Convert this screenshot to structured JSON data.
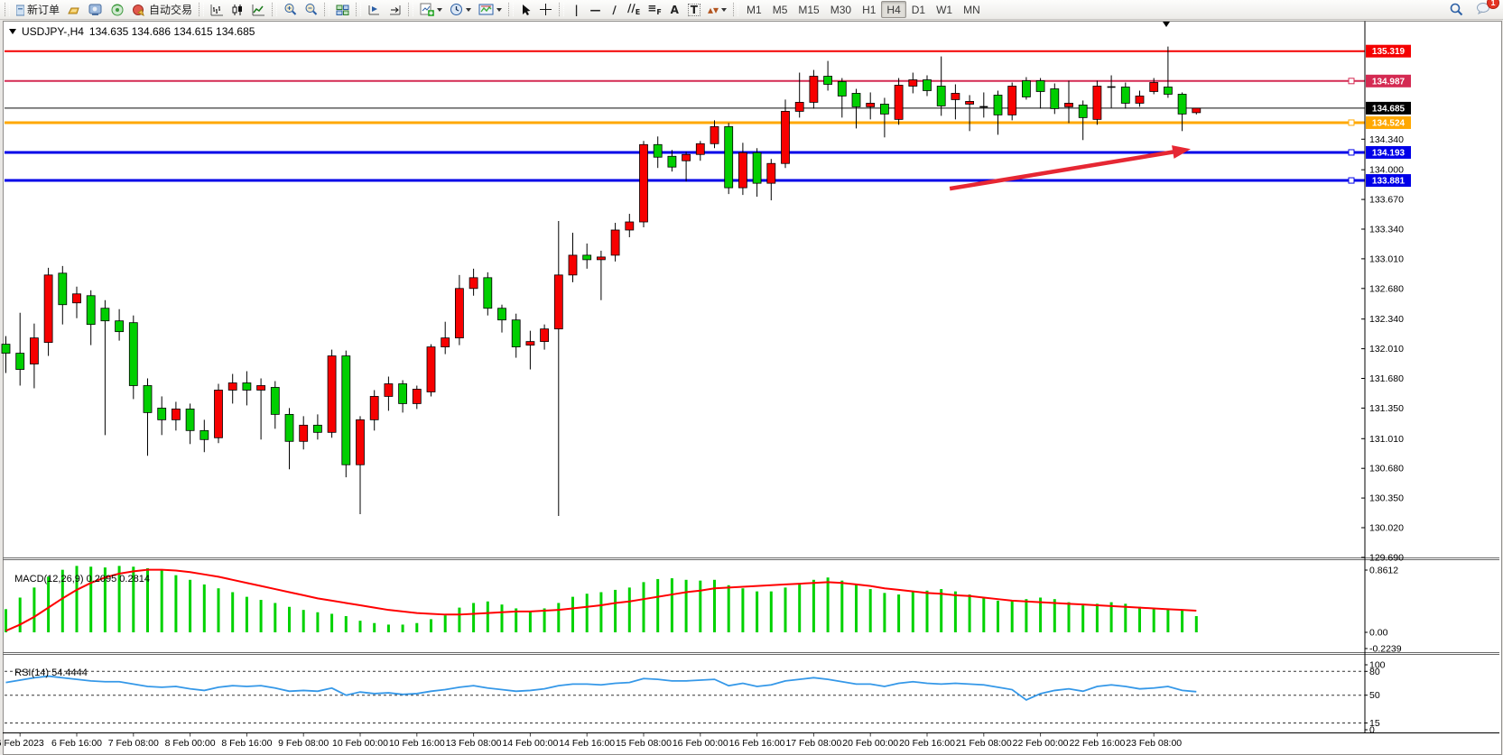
{
  "toolbar": {
    "new_order": "新订单",
    "auto_trading": "自动交易",
    "timeframes": [
      "M1",
      "M5",
      "M15",
      "M30",
      "H1",
      "H4",
      "D1",
      "W1",
      "MN"
    ],
    "active_timeframe": "H4",
    "notification_count": "1",
    "tool_glyphs": {
      "crosshair": "+",
      "vline": "|",
      "hline": "—",
      "trendline": "∕",
      "channel": "∕∕",
      "channel_letter": "E",
      "fib": "≡",
      "fib_letter": "F",
      "text": "A",
      "label": "T",
      "arrows": "▴▾"
    }
  },
  "chart_window": {
    "symbol_period": "USDJPY-,H4",
    "ohlc": "134.635 134.686 134.615 134.685"
  },
  "chart_data": {
    "type": "candlestick",
    "symbol": "USDJPY-",
    "period": "H4",
    "current_bar": {
      "open": 134.635,
      "high": 134.686,
      "low": 134.615,
      "close": 134.685
    },
    "up_color": "#f70000",
    "down_color": "#00cf00",
    "wick_color": "#000000",
    "price_lines": [
      {
        "price": 135.319,
        "label": "135.319",
        "color": "#f40000",
        "width": 2,
        "handle": false
      },
      {
        "price": 134.987,
        "label": "134.987",
        "color": "#d42a52",
        "width": 2,
        "handle": true
      },
      {
        "price": 134.685,
        "label": "134.685",
        "color": "#0a0a0a",
        "width": 1,
        "handle": false
      },
      {
        "price": 134.524,
        "label": "134.524",
        "color": "#ffa800",
        "width": 3,
        "handle": true
      },
      {
        "price": 134.193,
        "label": "134.193",
        "color": "#0000e8",
        "width": 3,
        "handle": true
      },
      {
        "price": 133.881,
        "label": "133.881",
        "color": "#0000e8",
        "width": 3,
        "handle": true
      }
    ],
    "price_axis": {
      "ticks": [
        "134.340",
        "134.000",
        "133.670",
        "133.340",
        "133.010",
        "132.680",
        "132.340",
        "132.010",
        "131.680",
        "131.350",
        "131.010",
        "130.680",
        "130.350",
        "130.020",
        "129.690"
      ]
    },
    "time_labels": [
      {
        "t": "6 Feb 2023",
        "bar": 1
      },
      {
        "t": "6 Feb 16:00",
        "bar": 5
      },
      {
        "t": "7 Feb 08:00",
        "bar": 9
      },
      {
        "t": "8 Feb 00:00",
        "bar": 13
      },
      {
        "t": "8 Feb 16:00",
        "bar": 17
      },
      {
        "t": "9 Feb 08:00",
        "bar": 21
      },
      {
        "t": "10 Feb 00:00",
        "bar": 25
      },
      {
        "t": "10 Feb 16:00",
        "bar": 29
      },
      {
        "t": "13 Feb 08:00",
        "bar": 33
      },
      {
        "t": "14 Feb 00:00",
        "bar": 37
      },
      {
        "t": "14 Feb 16:00",
        "bar": 41
      },
      {
        "t": "15 Feb 08:00",
        "bar": 45
      },
      {
        "t": "16 Feb 00:00",
        "bar": 49
      },
      {
        "t": "16 Feb 16:00",
        "bar": 53
      },
      {
        "t": "17 Feb 08:00",
        "bar": 57
      },
      {
        "t": "20 Feb 00:00",
        "bar": 61
      },
      {
        "t": "20 Feb 16:00",
        "bar": 65
      },
      {
        "t": "21 Feb 08:00",
        "bar": 69
      },
      {
        "t": "22 Feb 00:00",
        "bar": 73
      },
      {
        "t": "22 Feb 16:00",
        "bar": 77
      },
      {
        "t": "23 Feb 08:00",
        "bar": 81
      }
    ],
    "candles": [
      [
        132.06,
        132.15,
        131.74,
        131.96
      ],
      [
        131.96,
        132.41,
        131.6,
        131.78
      ],
      [
        131.84,
        132.29,
        131.57,
        132.13
      ],
      [
        132.08,
        132.91,
        131.93,
        132.83
      ],
      [
        132.85,
        132.93,
        132.28,
        132.5
      ],
      [
        132.52,
        132.7,
        132.35,
        132.62
      ],
      [
        132.6,
        132.66,
        132.05,
        132.28
      ],
      [
        132.46,
        132.55,
        131.05,
        132.32
      ],
      [
        132.32,
        132.45,
        132.1,
        132.2
      ],
      [
        132.3,
        132.38,
        131.45,
        131.6
      ],
      [
        131.6,
        131.68,
        130.82,
        131.3
      ],
      [
        131.35,
        131.48,
        131.05,
        131.22
      ],
      [
        131.22,
        131.42,
        131.1,
        131.34
      ],
      [
        131.34,
        131.4,
        130.95,
        131.1
      ],
      [
        131.1,
        131.22,
        130.86,
        131.0
      ],
      [
        131.02,
        131.62,
        130.96,
        131.55
      ],
      [
        131.55,
        131.73,
        131.4,
        131.63
      ],
      [
        131.63,
        131.76,
        131.38,
        131.55
      ],
      [
        131.55,
        131.68,
        131.0,
        131.6
      ],
      [
        131.58,
        131.65,
        131.12,
        131.28
      ],
      [
        131.28,
        131.35,
        130.67,
        130.98
      ],
      [
        130.98,
        131.26,
        130.89,
        131.16
      ],
      [
        131.16,
        131.28,
        131.0,
        131.08
      ],
      [
        131.08,
        132.0,
        131.02,
        131.93
      ],
      [
        131.93,
        131.99,
        130.58,
        130.72
      ],
      [
        130.72,
        131.26,
        130.17,
        131.22
      ],
      [
        131.22,
        131.55,
        131.1,
        131.48
      ],
      [
        131.48,
        131.7,
        131.32,
        131.62
      ],
      [
        131.62,
        131.66,
        131.3,
        131.4
      ],
      [
        131.4,
        131.6,
        131.34,
        131.56
      ],
      [
        131.53,
        132.06,
        131.48,
        132.03
      ],
      [
        132.03,
        132.31,
        131.95,
        132.13
      ],
      [
        132.13,
        132.83,
        132.05,
        132.68
      ],
      [
        132.68,
        132.9,
        132.6,
        132.8
      ],
      [
        132.8,
        132.86,
        132.38,
        132.46
      ],
      [
        132.46,
        132.5,
        132.19,
        132.33
      ],
      [
        132.33,
        132.4,
        131.91,
        132.03
      ],
      [
        132.05,
        132.21,
        131.78,
        132.09
      ],
      [
        132.09,
        132.28,
        132.0,
        132.23
      ],
      [
        132.23,
        133.43,
        130.15,
        132.83
      ],
      [
        132.83,
        133.3,
        132.75,
        133.05
      ],
      [
        133.05,
        133.18,
        132.9,
        133.0
      ],
      [
        133.0,
        133.1,
        132.55,
        133.03
      ],
      [
        133.05,
        133.41,
        132.98,
        133.33
      ],
      [
        133.33,
        133.51,
        133.25,
        133.42
      ],
      [
        133.42,
        134.32,
        133.36,
        134.28
      ],
      [
        134.28,
        134.37,
        134.02,
        134.14
      ],
      [
        134.15,
        134.22,
        133.98,
        134.03
      ],
      [
        134.1,
        134.2,
        133.87,
        134.17
      ],
      [
        134.17,
        134.32,
        134.1,
        134.29
      ],
      [
        134.29,
        134.55,
        134.24,
        134.48
      ],
      [
        134.48,
        134.52,
        133.73,
        133.8
      ],
      [
        133.8,
        134.3,
        133.72,
        134.19
      ],
      [
        134.19,
        134.24,
        133.7,
        133.85
      ],
      [
        133.85,
        134.12,
        133.66,
        134.07
      ],
      [
        134.07,
        134.78,
        134.02,
        134.65
      ],
      [
        134.65,
        135.08,
        134.58,
        134.75
      ],
      [
        134.75,
        135.11,
        134.68,
        135.04
      ],
      [
        135.04,
        135.21,
        134.88,
        134.95
      ],
      [
        134.98,
        135.02,
        134.58,
        134.82
      ],
      [
        134.85,
        134.9,
        134.46,
        134.7
      ],
      [
        134.7,
        134.86,
        134.56,
        134.74
      ],
      [
        134.73,
        134.8,
        134.36,
        134.62
      ],
      [
        134.56,
        135.02,
        134.5,
        134.94
      ],
      [
        134.93,
        135.08,
        134.85,
        135.0
      ],
      [
        135.0,
        135.05,
        134.82,
        134.88
      ],
      [
        134.93,
        135.26,
        134.6,
        134.71
      ],
      [
        134.78,
        134.95,
        134.56,
        134.85
      ],
      [
        134.73,
        134.83,
        134.43,
        134.76
      ],
      [
        134.7,
        134.86,
        134.58,
        134.7
      ],
      [
        134.83,
        134.88,
        134.39,
        134.61
      ],
      [
        134.61,
        134.97,
        134.55,
        134.93
      ],
      [
        134.99,
        135.03,
        134.78,
        134.81
      ],
      [
        134.99,
        135.02,
        134.68,
        134.87
      ],
      [
        134.9,
        134.96,
        134.62,
        134.68
      ],
      [
        134.7,
        134.99,
        134.52,
        134.74
      ],
      [
        134.72,
        134.77,
        134.33,
        134.58
      ],
      [
        134.56,
        134.99,
        134.5,
        134.93
      ],
      [
        134.92,
        135.05,
        134.69,
        134.92
      ],
      [
        134.92,
        134.97,
        134.68,
        134.74
      ],
      [
        134.74,
        134.88,
        134.7,
        134.82
      ],
      [
        134.87,
        135.02,
        134.84,
        134.97
      ],
      [
        134.92,
        135.37,
        134.8,
        134.84
      ],
      [
        134.84,
        134.86,
        134.43,
        134.62
      ],
      [
        134.635,
        134.686,
        134.615,
        134.685
      ]
    ],
    "trend_arrow": {
      "from_bar": 66.6,
      "from_price": 133.79,
      "to_bar": 83.6,
      "to_price": 134.23,
      "color": "#e62733"
    },
    "macd": {
      "label": "MACD(12,26,9)",
      "values_text": "0.2095 0.2814",
      "hist_color": "#00d200",
      "signal_color": "#ff0000",
      "scale_labels": [
        {
          "t": "0.8612",
          "v": 0.8612
        },
        {
          "t": "0.00",
          "v": 0
        },
        {
          "t": "-0.2239",
          "v": -0.2239
        }
      ],
      "histogram": [
        0.3,
        0.45,
        0.58,
        0.72,
        0.81,
        0.86,
        0.85,
        0.84,
        0.86,
        0.85,
        0.83,
        0.8,
        0.74,
        0.68,
        0.62,
        0.57,
        0.52,
        0.46,
        0.42,
        0.38,
        0.33,
        0.29,
        0.26,
        0.24,
        0.21,
        0.15,
        0.12,
        0.1,
        0.1,
        0.12,
        0.17,
        0.22,
        0.32,
        0.38,
        0.4,
        0.36,
        0.31,
        0.28,
        0.31,
        0.38,
        0.46,
        0.5,
        0.52,
        0.55,
        0.58,
        0.65,
        0.69,
        0.7,
        0.68,
        0.67,
        0.68,
        0.61,
        0.57,
        0.53,
        0.53,
        0.58,
        0.63,
        0.68,
        0.71,
        0.67,
        0.62,
        0.56,
        0.51,
        0.49,
        0.52,
        0.54,
        0.56,
        0.53,
        0.49,
        0.45,
        0.41,
        0.41,
        0.43,
        0.45,
        0.43,
        0.39,
        0.35,
        0.37,
        0.39,
        0.37,
        0.33,
        0.31,
        0.31,
        0.29,
        0.21
      ],
      "signal": [
        0.02,
        0.1,
        0.2,
        0.32,
        0.44,
        0.55,
        0.64,
        0.71,
        0.76,
        0.79,
        0.81,
        0.81,
        0.8,
        0.78,
        0.75,
        0.72,
        0.68,
        0.64,
        0.6,
        0.56,
        0.52,
        0.48,
        0.44,
        0.41,
        0.38,
        0.35,
        0.32,
        0.29,
        0.27,
        0.25,
        0.24,
        0.23,
        0.23,
        0.24,
        0.25,
        0.26,
        0.27,
        0.27,
        0.28,
        0.29,
        0.31,
        0.33,
        0.35,
        0.38,
        0.4,
        0.43,
        0.46,
        0.49,
        0.52,
        0.54,
        0.57,
        0.58,
        0.59,
        0.6,
        0.61,
        0.62,
        0.63,
        0.64,
        0.65,
        0.64,
        0.62,
        0.6,
        0.57,
        0.55,
        0.53,
        0.51,
        0.5,
        0.48,
        0.47,
        0.45,
        0.43,
        0.41,
        0.4,
        0.39,
        0.38,
        0.37,
        0.36,
        0.35,
        0.34,
        0.33,
        0.32,
        0.31,
        0.3,
        0.29,
        0.28
      ]
    },
    "rsi": {
      "label": "RSI(14)",
      "value_text": "54.4444",
      "line_color": "#3598e8",
      "levels": [
        {
          "t": "100",
          "v": 100
        },
        {
          "t": "80",
          "v": 80
        },
        {
          "t": "50",
          "v": 50
        },
        {
          "t": "15",
          "v": 15
        },
        {
          "t": "0",
          "v": 0
        }
      ],
      "dashed": [
        80,
        50,
        15
      ],
      "values": [
        66,
        69,
        72,
        74,
        72,
        70,
        68,
        67,
        67,
        64,
        61,
        60,
        61,
        58,
        56,
        60,
        62,
        61,
        62,
        59,
        55,
        56,
        55,
        59,
        50,
        54,
        52,
        53,
        51,
        52,
        55,
        57,
        60,
        62,
        59,
        57,
        55,
        56,
        58,
        62,
        64,
        64,
        63,
        65,
        66,
        71,
        70,
        68,
        68,
        69,
        70,
        62,
        65,
        61,
        63,
        68,
        70,
        72,
        70,
        67,
        64,
        64,
        61,
        65,
        67,
        65,
        64,
        65,
        64,
        63,
        60,
        57,
        44,
        52,
        56,
        58,
        55,
        61,
        63,
        61,
        58,
        59,
        61,
        56,
        54.4
      ]
    }
  }
}
